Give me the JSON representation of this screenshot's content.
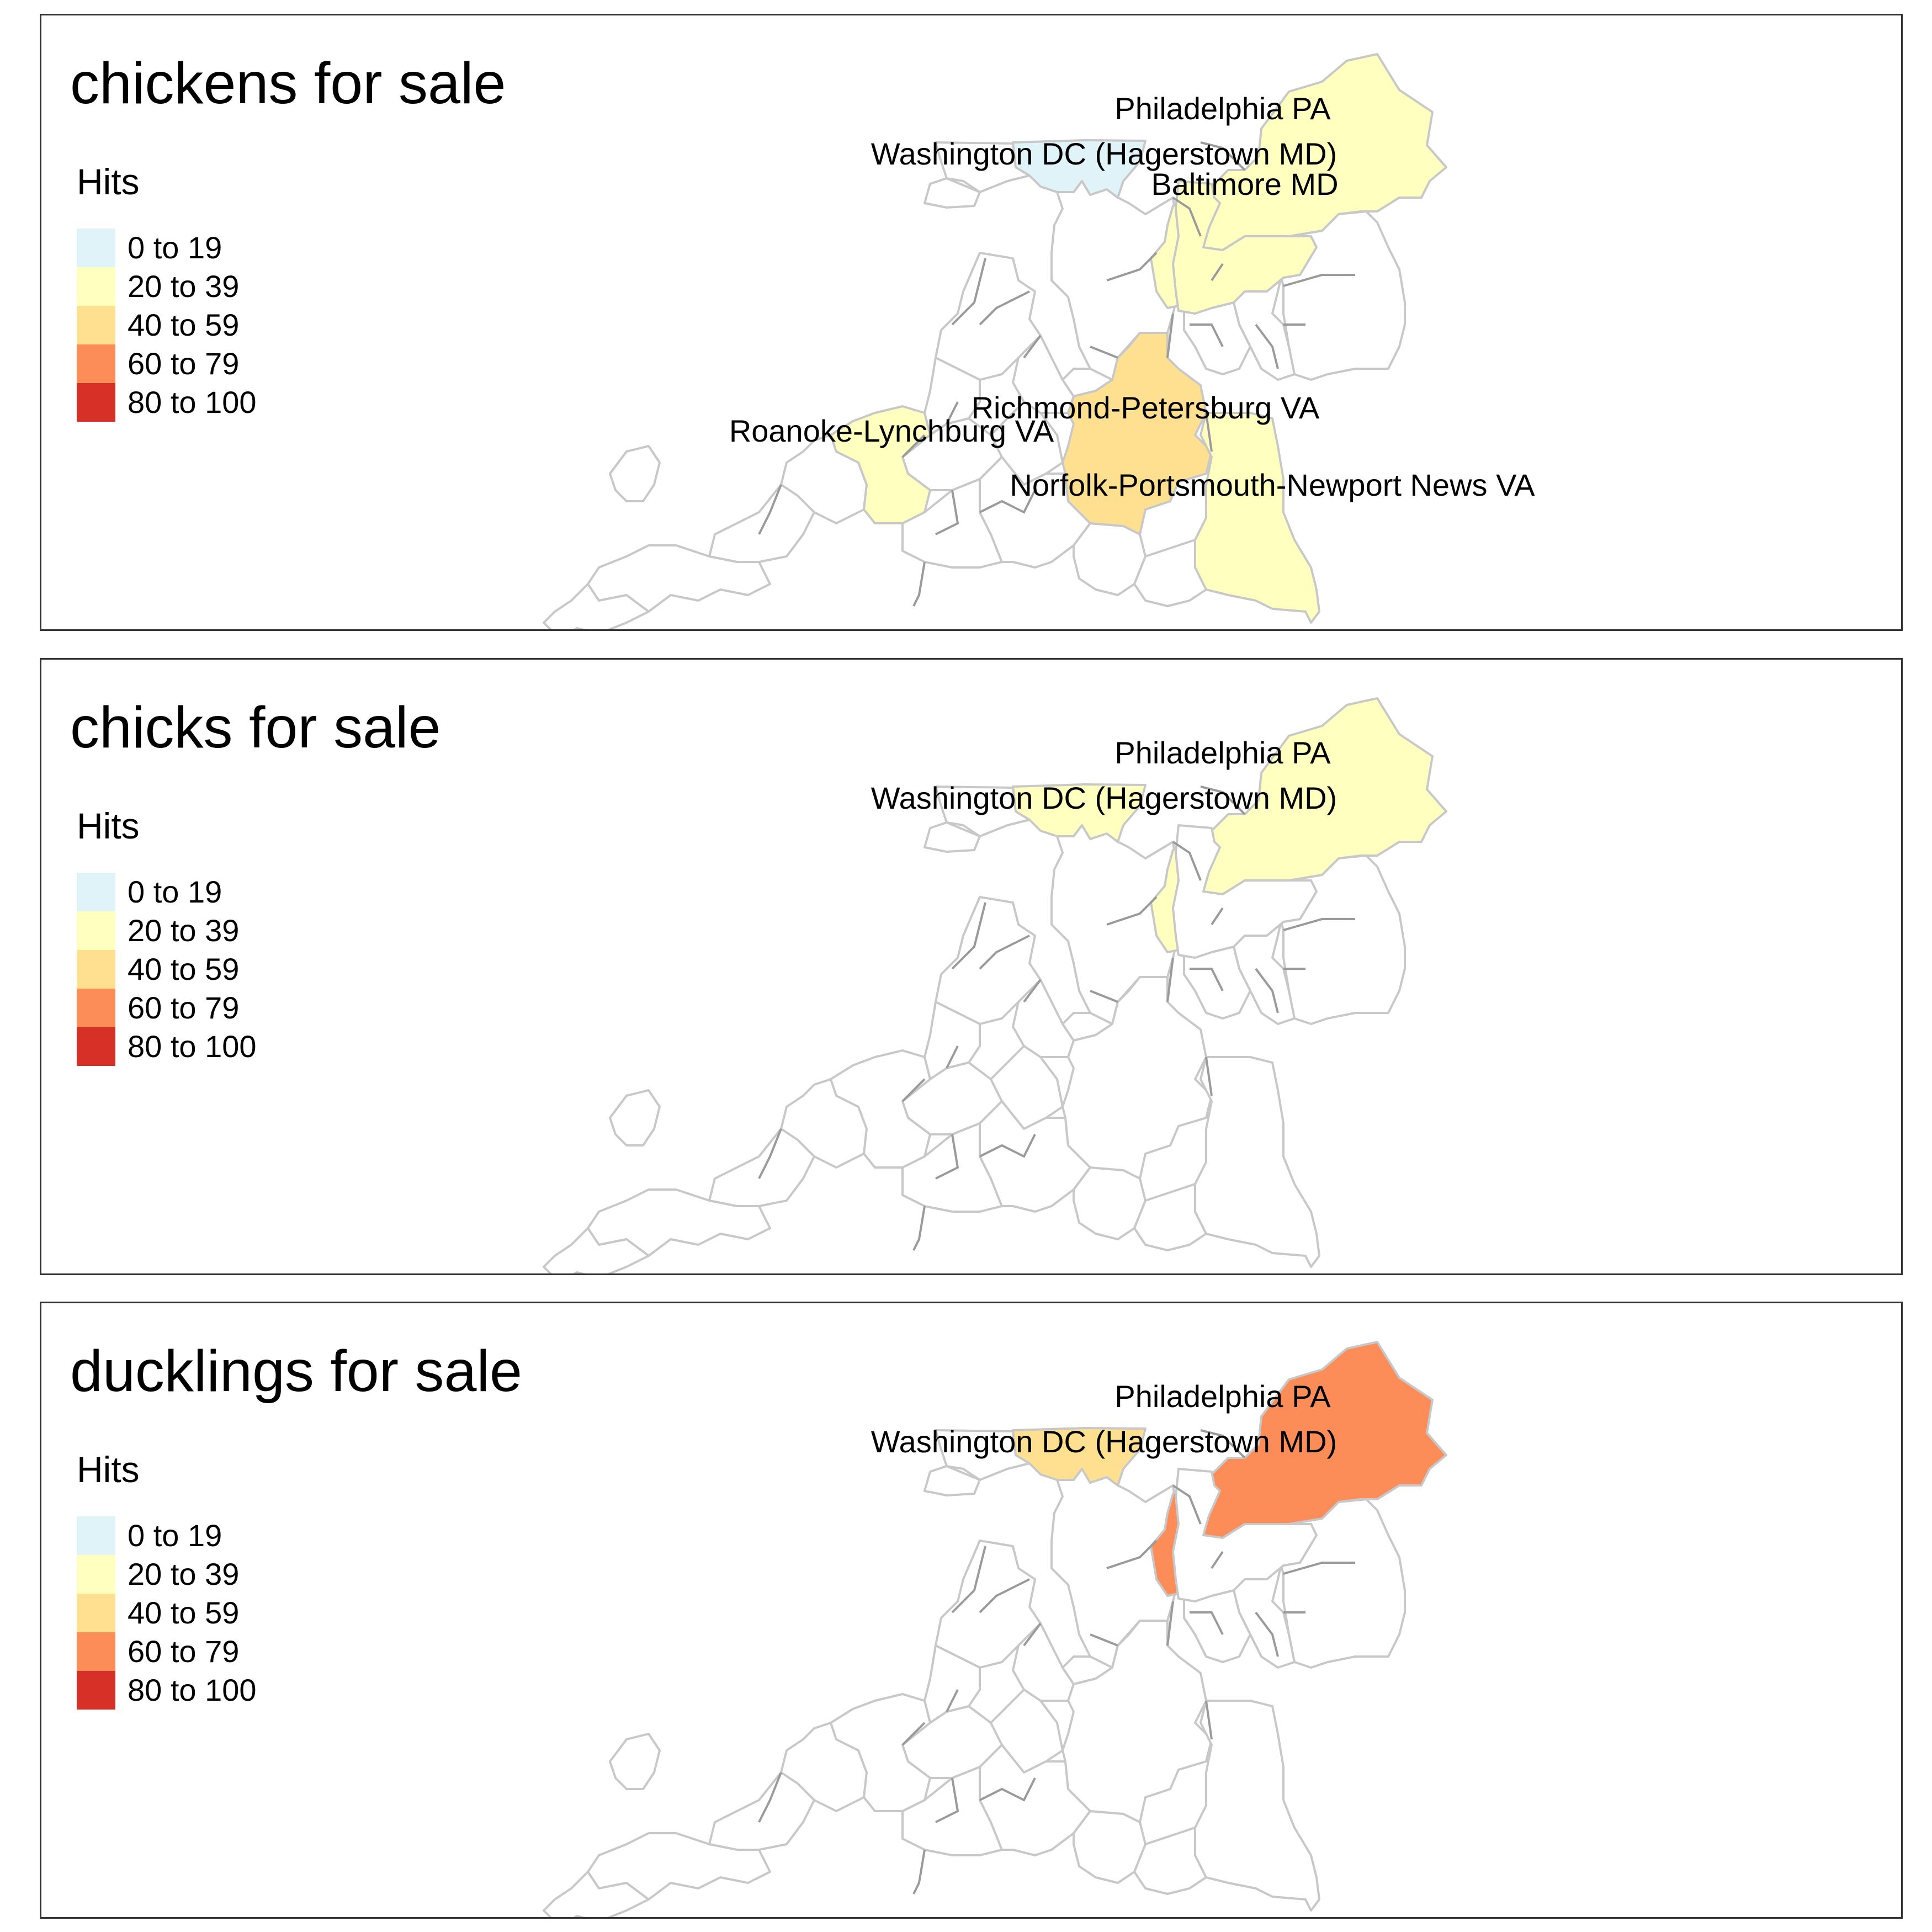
{
  "legend": {
    "title": "Hits",
    "classes": [
      {
        "label": "0 to 19",
        "color": "#e0f3f8"
      },
      {
        "label": "20 to 39",
        "color": "#ffffbf"
      },
      {
        "label": "40 to 59",
        "color": "#fee090"
      },
      {
        "label": "60 to 79",
        "color": "#fc8d59"
      },
      {
        "label": "80 to 100",
        "color": "#d73027"
      }
    ]
  },
  "map_style": {
    "boundary_color": "#c8c8c8",
    "inner_boundary_color": "#9a9a9a"
  },
  "panels": [
    {
      "title": "chickens for sale",
      "regions": [
        {
          "name": "Philadelphia PA",
          "hits_class": "20 to 39"
        },
        {
          "name": "Washington DC (Hagerstown MD)",
          "hits_class": "0 to 19"
        },
        {
          "name": "Baltimore MD",
          "hits_class": "20 to 39"
        },
        {
          "name": "Richmond-Petersburg VA",
          "hits_class": "40 to 59"
        },
        {
          "name": "Roanoke-Lynchburg VA",
          "hits_class": "20 to 39"
        },
        {
          "name": "Norfolk-Portsmouth-Newport News VA",
          "hits_class": "20 to 39"
        }
      ]
    },
    {
      "title": "chicks for sale",
      "regions": [
        {
          "name": "Philadelphia PA",
          "hits_class": "20 to 39"
        },
        {
          "name": "Washington DC (Hagerstown MD)",
          "hits_class": "20 to 39"
        }
      ]
    },
    {
      "title": "ducklings for sale",
      "regions": [
        {
          "name": "Philadelphia PA",
          "hits_class": "60 to 79"
        },
        {
          "name": "Washington DC (Hagerstown MD)",
          "hits_class": "40 to 59"
        }
      ]
    }
  ]
}
